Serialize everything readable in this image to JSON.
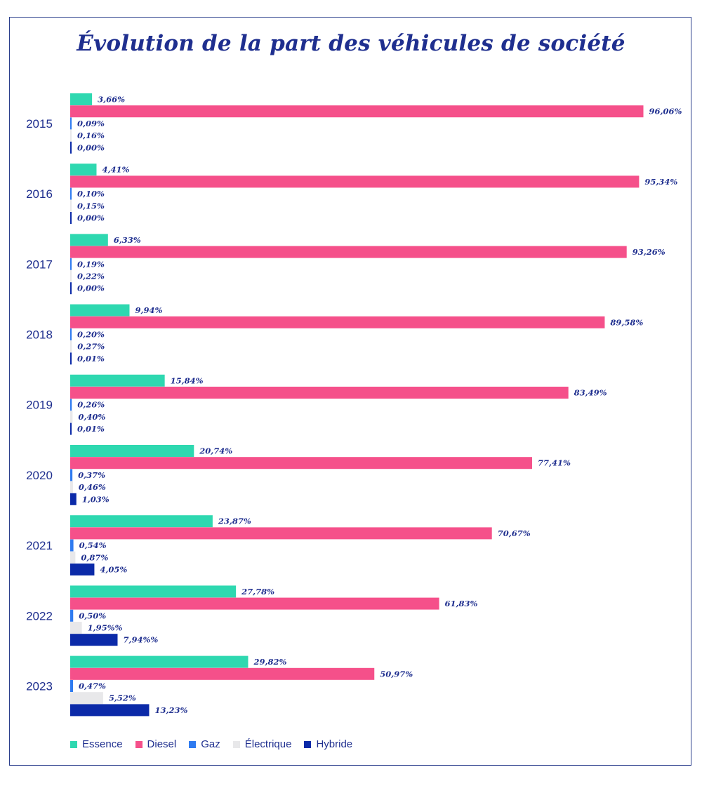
{
  "chart_data": {
    "type": "bar",
    "orientation": "horizontal",
    "title": "Évolution de la part des véhicules de société",
    "categories": [
      "2015",
      "2016",
      "2017",
      "2018",
      "2019",
      "2020",
      "2021",
      "2022",
      "2023"
    ],
    "series": [
      {
        "name": "Essence",
        "color": "#2ed8b0",
        "values": [
          3.66,
          4.41,
          6.33,
          9.94,
          15.84,
          20.74,
          23.87,
          27.78,
          29.82
        ],
        "labels": [
          "3,66%",
          "4,41%",
          "6,33%",
          "9,94%",
          "15,84%",
          "20,74%",
          "23,87%",
          "27,78%",
          "29,82%"
        ]
      },
      {
        "name": "Diesel",
        "color": "#f5508a",
        "values": [
          96.06,
          95.34,
          93.26,
          89.58,
          83.49,
          77.41,
          70.67,
          61.83,
          50.97
        ],
        "labels": [
          "96,06%",
          "95,34%",
          "93,26%",
          "89,58%",
          "83,49%",
          "77,41%",
          "70,67%",
          "61,83%",
          "50,97%"
        ]
      },
      {
        "name": "Gaz",
        "color": "#2f7bf0",
        "values": [
          0.09,
          0.1,
          0.19,
          0.2,
          0.26,
          0.37,
          0.54,
          0.5,
          0.47
        ],
        "labels": [
          "0,09%",
          "0,10%",
          "0,19%",
          "0,20%",
          "0,26%",
          "0,37%",
          "0,54%",
          "0,50%",
          "0,47%"
        ]
      },
      {
        "name": "Électrique",
        "color": "#e8e8ea",
        "values": [
          0.16,
          0.15,
          0.22,
          0.27,
          0.4,
          0.46,
          0.87,
          1.95,
          5.52
        ],
        "labels": [
          "0,16%",
          "0,15%",
          "0,22%",
          "0,27%",
          "0,40%",
          "0,46%",
          "0,87%",
          "1,95%%",
          "5,52%"
        ]
      },
      {
        "name": "Hybride",
        "color": "#0b2aa8",
        "values": [
          0.0,
          0.0,
          0.0,
          0.01,
          0.01,
          1.03,
          4.05,
          7.94,
          13.23
        ],
        "labels": [
          "0,00%",
          "0,00%",
          "0,00%",
          "0,01%",
          "0,01%",
          "1,03%",
          "4,05%",
          "7,94%%",
          "13,23%"
        ]
      }
    ],
    "xlim": [
      0,
      100
    ],
    "grid": false,
    "legend_position": "bottom-left"
  }
}
